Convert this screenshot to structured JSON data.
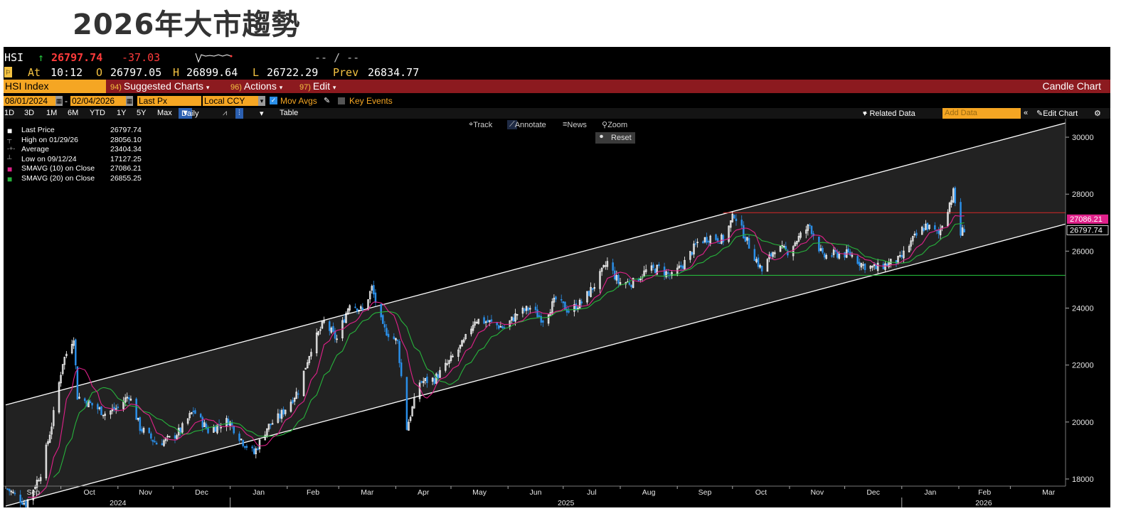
{
  "page_title": "2026年大市趨勢",
  "quote": {
    "ticker": "HSI",
    "arrow": "↑",
    "last": "26797.74",
    "change": "-37.03",
    "at_label": "At",
    "time": "10:12",
    "open_label": "O",
    "open": "26797.05",
    "high_label": "H",
    "high": "26899.64",
    "low_label": "L",
    "low": "26722.29",
    "prev_label": "Prev",
    "prev": "26834.77",
    "spark_placeholder": "-- / --"
  },
  "menubar": {
    "security": "HSI Index",
    "suggested_num": "94)",
    "suggested": "Suggested Charts",
    "actions_num": "96)",
    "actions": "Actions",
    "edit_num": "97)",
    "edit": "Edit",
    "chart_type": "Candle Chart"
  },
  "toolbar": {
    "start_date": "08/01/2024",
    "end_date": "02/04/2026",
    "field": "Last Px",
    "currency": "Local CCY",
    "mov_avgs": "Mov Avgs",
    "key_events": "Key Events"
  },
  "periods": {
    "items": [
      "1D",
      "3D",
      "1M",
      "6M",
      "YTD",
      "1Y",
      "5Y",
      "Max"
    ],
    "frequency": "Daily",
    "table": "Table",
    "related": "+ Related Data",
    "add_data_placeholder": "Add Data",
    "edit_chart": "Edit Chart"
  },
  "chart_tools": {
    "track": "Track",
    "annotate": "Annotate",
    "news": "News",
    "zoom": "Zoom",
    "reset": "Reset"
  },
  "legend": [
    {
      "label": "Last Price",
      "value": "26797.74",
      "color": "#ffffff"
    },
    {
      "label": "High on 01/29/26",
      "value": "28056.10",
      "color": "#aaaaaa"
    },
    {
      "label": "Average",
      "value": "23404.34",
      "color": "#aaaaaa"
    },
    {
      "label": "Low on 09/12/24",
      "value": "17127.25",
      "color": "#aaaaaa"
    },
    {
      "label": "SMAVG (10)  on Close",
      "value": "27086.21",
      "color": "#e0218a"
    },
    {
      "label": "SMAVG (20)  on Close",
      "value": "26855.25",
      "color": "#27b33c"
    }
  ],
  "colors": {
    "up_candle": "#ffffff",
    "down_candle": "#2b8fe8",
    "sma10": "#e0218a",
    "sma20": "#27b33c",
    "resistance": "#d62828",
    "support": "#27c93f",
    "channel": "#ffffff",
    "channel_fill": "#222222"
  },
  "chart_data": {
    "type": "candlestick",
    "frequency": "Daily",
    "ylim": [
      17600,
      30500
    ],
    "y_ticks": [
      18000,
      20000,
      22000,
      24000,
      26000,
      28000,
      30000
    ],
    "x_month_labels": [
      "Sep",
      "Oct",
      "Nov",
      "Dec",
      "Jan",
      "Feb",
      "Mar",
      "Apr",
      "May",
      "Jun",
      "Jul",
      "Aug",
      "Sep",
      "Oct",
      "Nov",
      "Dec",
      "Jan",
      "Feb",
      "Mar"
    ],
    "x_year_labels": [
      "2024",
      "2025",
      "2026"
    ],
    "price_tags": [
      {
        "label": "27086.21",
        "value": 27086.21,
        "color": "#e0218a"
      },
      {
        "label": "26797.74",
        "value": 26797.74,
        "color": "#ffffff"
      }
    ],
    "resistance_level": 27350,
    "support_level": 25150,
    "channel_upper": [
      {
        "date": "2024-09-01",
        "value": 20600
      },
      {
        "date": "2026-03-31",
        "value": 30500
      }
    ],
    "channel_lower": [
      {
        "date": "2024-09-01",
        "value": 17050
      },
      {
        "date": "2026-03-31",
        "value": 26950
      }
    ],
    "close_path": [
      {
        "date": "2024-09-02",
        "close": 17650
      },
      {
        "date": "2024-09-12",
        "close": 17127
      },
      {
        "date": "2024-09-20",
        "close": 18200
      },
      {
        "date": "2024-09-26",
        "close": 19900
      },
      {
        "date": "2024-10-02",
        "close": 22100
      },
      {
        "date": "2024-10-08",
        "close": 23000
      },
      {
        "date": "2024-10-10",
        "close": 20900
      },
      {
        "date": "2024-10-18",
        "close": 20600
      },
      {
        "date": "2024-10-25",
        "close": 20300
      },
      {
        "date": "2024-11-01",
        "close": 20500
      },
      {
        "date": "2024-11-07",
        "close": 20950
      },
      {
        "date": "2024-11-13",
        "close": 19800
      },
      {
        "date": "2024-11-22",
        "close": 19250
      },
      {
        "date": "2024-11-29",
        "close": 19400
      },
      {
        "date": "2024-12-05",
        "close": 19700
      },
      {
        "date": "2024-12-12",
        "close": 20400
      },
      {
        "date": "2024-12-20",
        "close": 19700
      },
      {
        "date": "2024-12-31",
        "close": 20050
      },
      {
        "date": "2025-01-08",
        "close": 19300
      },
      {
        "date": "2025-01-14",
        "close": 18900
      },
      {
        "date": "2025-01-21",
        "close": 19800
      },
      {
        "date": "2025-01-28",
        "close": 20200
      },
      {
        "date": "2025-02-07",
        "close": 21100
      },
      {
        "date": "2025-02-14",
        "close": 22600
      },
      {
        "date": "2025-02-21",
        "close": 23500
      },
      {
        "date": "2025-02-28",
        "close": 22900
      },
      {
        "date": "2025-03-07",
        "close": 24200
      },
      {
        "date": "2025-03-14",
        "close": 23900
      },
      {
        "date": "2025-03-19",
        "close": 24700
      },
      {
        "date": "2025-03-25",
        "close": 23300
      },
      {
        "date": "2025-04-02",
        "close": 22800
      },
      {
        "date": "2025-04-07",
        "close": 19800
      },
      {
        "date": "2025-04-14",
        "close": 21400
      },
      {
        "date": "2025-04-22",
        "close": 21500
      },
      {
        "date": "2025-04-30",
        "close": 22100
      },
      {
        "date": "2025-05-08",
        "close": 22800
      },
      {
        "date": "2025-05-14",
        "close": 23600
      },
      {
        "date": "2025-05-22",
        "close": 23500
      },
      {
        "date": "2025-05-30",
        "close": 23300
      },
      {
        "date": "2025-06-06",
        "close": 23800
      },
      {
        "date": "2025-06-13",
        "close": 24000
      },
      {
        "date": "2025-06-20",
        "close": 23600
      },
      {
        "date": "2025-06-27",
        "close": 24300
      },
      {
        "date": "2025-07-04",
        "close": 23900
      },
      {
        "date": "2025-07-11",
        "close": 24200
      },
      {
        "date": "2025-07-18",
        "close": 24800
      },
      {
        "date": "2025-07-25",
        "close": 25600
      },
      {
        "date": "2025-07-31",
        "close": 24900
      },
      {
        "date": "2025-08-08",
        "close": 24900
      },
      {
        "date": "2025-08-15",
        "close": 25300
      },
      {
        "date": "2025-08-22",
        "close": 25400
      },
      {
        "date": "2025-08-29",
        "close": 25100
      },
      {
        "date": "2025-09-05",
        "close": 25600
      },
      {
        "date": "2025-09-12",
        "close": 26300
      },
      {
        "date": "2025-09-19",
        "close": 26500
      },
      {
        "date": "2025-09-26",
        "close": 26400
      },
      {
        "date": "2025-10-02",
        "close": 27300
      },
      {
        "date": "2025-10-10",
        "close": 26200
      },
      {
        "date": "2025-10-17",
        "close": 25300
      },
      {
        "date": "2025-10-24",
        "close": 26100
      },
      {
        "date": "2025-10-31",
        "close": 26000
      },
      {
        "date": "2025-11-05",
        "close": 26400
      },
      {
        "date": "2025-11-12",
        "close": 26900
      },
      {
        "date": "2025-11-19",
        "close": 25800
      },
      {
        "date": "2025-11-26",
        "close": 25900
      },
      {
        "date": "2025-12-04",
        "close": 25900
      },
      {
        "date": "2025-12-11",
        "close": 25500
      },
      {
        "date": "2025-12-18",
        "close": 25400
      },
      {
        "date": "2025-12-31",
        "close": 25700
      },
      {
        "date": "2026-01-07",
        "close": 26400
      },
      {
        "date": "2026-01-14",
        "close": 26900
      },
      {
        "date": "2026-01-21",
        "close": 26600
      },
      {
        "date": "2026-01-29",
        "close": 28056
      },
      {
        "date": "2026-02-02",
        "close": 26600
      },
      {
        "date": "2026-02-04",
        "close": 26797.74
      }
    ]
  }
}
